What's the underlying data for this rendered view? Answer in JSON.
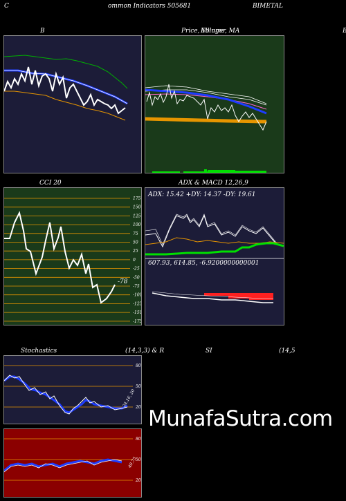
{
  "header": {
    "left": "C",
    "center": "ommon  Indicators 505681",
    "right": "BIMETAL"
  },
  "panels": {
    "bb_title": "B",
    "price_title": "Price, Volume, MA",
    "overlap_text": "Ellinger",
    "right_edge": "B",
    "cci_title": "CCI 20",
    "cci_value": "-78",
    "cci_ticks": [
      "175",
      "150",
      "125",
      "100",
      "75",
      "50",
      "25",
      "0",
      "-25",
      "-50",
      "-75",
      "-100",
      "-125",
      "-150",
      "-175"
    ],
    "adx_title": "ADX  & MACD 12,26,9",
    "adx_readout": "ADX: 15.42  +DY: 14.37 -DY: 19.61",
    "macd_readout": "607.93,  614.85,  -6.9200000000001",
    "stoch_title": "Stochastics",
    "stoch_params": "(14,3,3) & R",
    "rsi_title": "SI",
    "rsi_params": "(14,5",
    "stoch_ticks": [
      "80",
      "50",
      "20"
    ],
    "stoch_value": "24.16, 20",
    "rsi_ticks": [
      "80",
      "50",
      "20"
    ],
    "rsi_value": "49.75"
  },
  "watermark": "MunafaSutra.com",
  "colors": {
    "navy_panel": "#1c1c38",
    "green_panel": "#1a3a1a",
    "red_panel": "#8b0000",
    "orange": "#e69500",
    "blue": "#1e3cff",
    "bright_green": "#00e000"
  }
}
